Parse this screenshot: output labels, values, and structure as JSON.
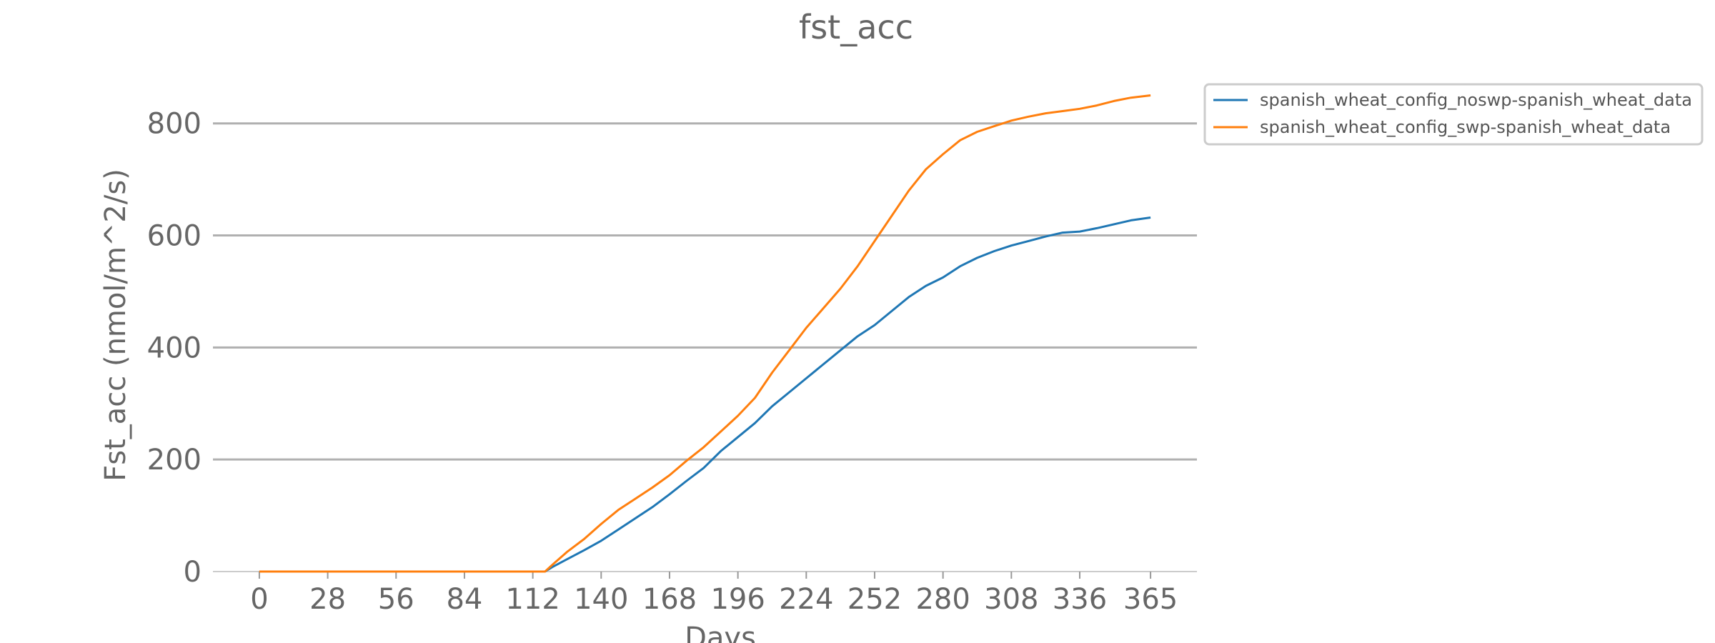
{
  "chart_data": {
    "type": "line",
    "title": "fst_acc",
    "xlabel": "Days",
    "ylabel": "Fst_acc (nmol/m^2/s)",
    "xlim": [
      -19,
      384
    ],
    "ylim": [
      0,
      880
    ],
    "x_ticks": [
      0,
      28,
      56,
      84,
      112,
      140,
      168,
      196,
      224,
      252,
      280,
      308,
      336,
      365
    ],
    "y_ticks": [
      0,
      200,
      400,
      600,
      800
    ],
    "grid": "horizontal",
    "legend_position": "top-right outside",
    "x": [
      0,
      28,
      56,
      84,
      112,
      117,
      120,
      126,
      133,
      140,
      147,
      154,
      161,
      168,
      175,
      182,
      189,
      196,
      203,
      210,
      217,
      224,
      231,
      238,
      245,
      252,
      259,
      266,
      273,
      280,
      287,
      294,
      301,
      308,
      315,
      322,
      329,
      336,
      343,
      350,
      357,
      365
    ],
    "series": [
      {
        "name": "spanish_wheat_config_noswp-spanish_wheat_data",
        "color": "#1f77b4",
        "values": [
          0,
          0,
          0,
          0,
          0,
          0,
          8,
          22,
          38,
          55,
          75,
          95,
          115,
          138,
          162,
          185,
          215,
          240,
          265,
          295,
          320,
          345,
          370,
          395,
          420,
          440,
          465,
          490,
          510,
          525,
          545,
          560,
          572,
          582,
          590,
          598,
          605,
          607,
          613,
          620,
          627,
          632
        ]
      },
      {
        "name": "spanish_wheat_config_swp-spanish_wheat_data",
        "color": "#ff7f0e",
        "values": [
          0,
          0,
          0,
          0,
          0,
          0,
          12,
          35,
          58,
          85,
          110,
          130,
          150,
          172,
          198,
          222,
          250,
          278,
          310,
          355,
          395,
          435,
          470,
          505,
          545,
          590,
          635,
          680,
          718,
          745,
          770,
          785,
          795,
          805,
          812,
          818,
          822,
          826,
          832,
          840,
          846,
          850
        ]
      }
    ]
  }
}
